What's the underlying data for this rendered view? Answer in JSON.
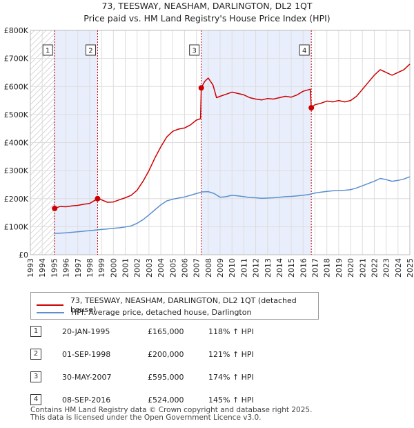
{
  "chart_data": {
    "type": "line",
    "title": "73, TEESWAY, NEASHAM, DARLINGTON, DL2 1QT",
    "subtitle": "Price paid vs. HM Land Registry's House Price Index (HPI)",
    "xlim": [
      1993,
      2025
    ],
    "ylim": [
      0,
      800000
    ],
    "x_ticks": [
      "1993",
      "1994",
      "1995",
      "1996",
      "1997",
      "1998",
      "1999",
      "2000",
      "2001",
      "2002",
      "2003",
      "2004",
      "2005",
      "2006",
      "2007",
      "2008",
      "2009",
      "2010",
      "2011",
      "2012",
      "2013",
      "2014",
      "2015",
      "2016",
      "2017",
      "2018",
      "2019",
      "2020",
      "2021",
      "2022",
      "2023",
      "2024",
      "2025"
    ],
    "y_ticks": [
      {
        "value": 0,
        "label": "£0"
      },
      {
        "value": 100000,
        "label": "£100K"
      },
      {
        "value": 200000,
        "label": "£200K"
      },
      {
        "value": 300000,
        "label": "£300K"
      },
      {
        "value": 400000,
        "label": "£400K"
      },
      {
        "value": 500000,
        "label": "£500K"
      },
      {
        "value": 600000,
        "label": "£600K"
      },
      {
        "value": 700000,
        "label": "£700K"
      },
      {
        "value": 800000,
        "label": "£800K"
      }
    ],
    "data_start": 1995.0,
    "shaded_spans": [
      [
        1995.05,
        1998.67
      ],
      [
        2007.41,
        2016.69
      ]
    ],
    "series": [
      {
        "name": "73, TEESWAY, NEASHAM, DARLINGTON, DL2 1QT (detached house)",
        "color": "#cc0000",
        "points": [
          [
            1995.05,
            165000
          ],
          [
            1995.5,
            172000
          ],
          [
            1996,
            171000
          ],
          [
            1996.5,
            174000
          ],
          [
            1997,
            176000
          ],
          [
            1997.5,
            180000
          ],
          [
            1998,
            183000
          ],
          [
            1998.67,
            200000
          ],
          [
            1999,
            196000
          ],
          [
            1999.5,
            187000
          ],
          [
            2000,
            188000
          ],
          [
            2000.5,
            196000
          ],
          [
            2001,
            203000
          ],
          [
            2001.5,
            212000
          ],
          [
            2002,
            230000
          ],
          [
            2002.5,
            262000
          ],
          [
            2003,
            300000
          ],
          [
            2003.5,
            345000
          ],
          [
            2004,
            385000
          ],
          [
            2004.5,
            420000
          ],
          [
            2005,
            440000
          ],
          [
            2005.5,
            448000
          ],
          [
            2006,
            452000
          ],
          [
            2006.5,
            463000
          ],
          [
            2007,
            480000
          ],
          [
            2007.35,
            485000
          ],
          [
            2007.41,
            595000
          ],
          [
            2007.7,
            618000
          ],
          [
            2008,
            630000
          ],
          [
            2008.4,
            605000
          ],
          [
            2008.7,
            560000
          ],
          [
            2009,
            565000
          ],
          [
            2009.5,
            572000
          ],
          [
            2010,
            580000
          ],
          [
            2010.5,
            575000
          ],
          [
            2011,
            570000
          ],
          [
            2011.5,
            560000
          ],
          [
            2012,
            555000
          ],
          [
            2012.5,
            552000
          ],
          [
            2013,
            557000
          ],
          [
            2013.5,
            555000
          ],
          [
            2014,
            560000
          ],
          [
            2014.5,
            565000
          ],
          [
            2015,
            562000
          ],
          [
            2015.5,
            570000
          ],
          [
            2016,
            583000
          ],
          [
            2016.6,
            590000
          ],
          [
            2016.69,
            524000
          ],
          [
            2017,
            535000
          ],
          [
            2017.5,
            540000
          ],
          [
            2018,
            548000
          ],
          [
            2018.5,
            545000
          ],
          [
            2019,
            550000
          ],
          [
            2019.5,
            545000
          ],
          [
            2020,
            550000
          ],
          [
            2020.5,
            565000
          ],
          [
            2021,
            590000
          ],
          [
            2021.5,
            615000
          ],
          [
            2022,
            640000
          ],
          [
            2022.5,
            660000
          ],
          [
            2023,
            650000
          ],
          [
            2023.5,
            640000
          ],
          [
            2024,
            650000
          ],
          [
            2024.5,
            660000
          ],
          [
            2025,
            680000
          ]
        ]
      },
      {
        "name": "HPI: Average price, detached house, Darlington",
        "color": "#5b8fd0",
        "points": [
          [
            1995,
            76000
          ],
          [
            1995.5,
            77000
          ],
          [
            1996,
            78000
          ],
          [
            1996.5,
            80000
          ],
          [
            1997,
            82000
          ],
          [
            1997.5,
            84000
          ],
          [
            1998,
            86000
          ],
          [
            1998.5,
            88000
          ],
          [
            1999,
            90000
          ],
          [
            1999.5,
            92000
          ],
          [
            2000,
            94000
          ],
          [
            2000.5,
            96000
          ],
          [
            2001,
            99000
          ],
          [
            2001.5,
            103000
          ],
          [
            2002,
            112000
          ],
          [
            2002.5,
            125000
          ],
          [
            2003,
            142000
          ],
          [
            2003.5,
            160000
          ],
          [
            2004,
            178000
          ],
          [
            2004.5,
            192000
          ],
          [
            2005,
            198000
          ],
          [
            2005.5,
            202000
          ],
          [
            2006,
            206000
          ],
          [
            2006.5,
            212000
          ],
          [
            2007,
            218000
          ],
          [
            2007.5,
            224000
          ],
          [
            2008,
            225000
          ],
          [
            2008.5,
            218000
          ],
          [
            2009,
            205000
          ],
          [
            2009.5,
            207000
          ],
          [
            2010,
            212000
          ],
          [
            2010.5,
            210000
          ],
          [
            2011,
            207000
          ],
          [
            2011.5,
            204000
          ],
          [
            2012,
            203000
          ],
          [
            2012.5,
            201000
          ],
          [
            2013,
            202000
          ],
          [
            2013.5,
            203000
          ],
          [
            2014,
            205000
          ],
          [
            2014.5,
            207000
          ],
          [
            2015,
            208000
          ],
          [
            2015.5,
            210000
          ],
          [
            2016,
            212000
          ],
          [
            2016.5,
            215000
          ],
          [
            2017,
            220000
          ],
          [
            2017.5,
            223000
          ],
          [
            2018,
            226000
          ],
          [
            2018.5,
            228000
          ],
          [
            2019,
            229000
          ],
          [
            2019.5,
            230000
          ],
          [
            2020,
            232000
          ],
          [
            2020.5,
            238000
          ],
          [
            2021,
            246000
          ],
          [
            2021.5,
            254000
          ],
          [
            2022,
            262000
          ],
          [
            2022.5,
            272000
          ],
          [
            2023,
            268000
          ],
          [
            2023.5,
            262000
          ],
          [
            2024,
            265000
          ],
          [
            2024.5,
            270000
          ],
          [
            2025,
            278000
          ]
        ]
      }
    ],
    "markers": [
      {
        "label": "1",
        "x": 1995.05,
        "y": 165000
      },
      {
        "label": "2",
        "x": 1998.67,
        "y": 200000
      },
      {
        "label": "3",
        "x": 2007.41,
        "y": 595000
      },
      {
        "label": "4",
        "x": 2016.69,
        "y": 524000
      }
    ]
  },
  "legend": {
    "red_label": "73, TEESWAY, NEASHAM, DARLINGTON, DL2 1QT (detached house)",
    "blue_label": "HPI: Average price, detached house, Darlington"
  },
  "transactions": [
    {
      "num": "1",
      "date": "20-JAN-1995",
      "price": "£165,000",
      "hpi": "118% ↑ HPI"
    },
    {
      "num": "2",
      "date": "01-SEP-1998",
      "price": "£200,000",
      "hpi": "121% ↑ HPI"
    },
    {
      "num": "3",
      "date": "30-MAY-2007",
      "price": "£595,000",
      "hpi": "174% ↑ HPI"
    },
    {
      "num": "4",
      "date": "08-SEP-2016",
      "price": "£524,000",
      "hpi": "145% ↑ HPI"
    }
  ],
  "footer": {
    "line1": "Contains HM Land Registry data © Crown copyright and database right 2025.",
    "line2": "This data is licensed under the Open Government Licence v3.0."
  },
  "colors": {
    "red": "#cc0000",
    "blue": "#5b8fd0",
    "shade": "#e8eefb",
    "grid": "#dddddd"
  }
}
